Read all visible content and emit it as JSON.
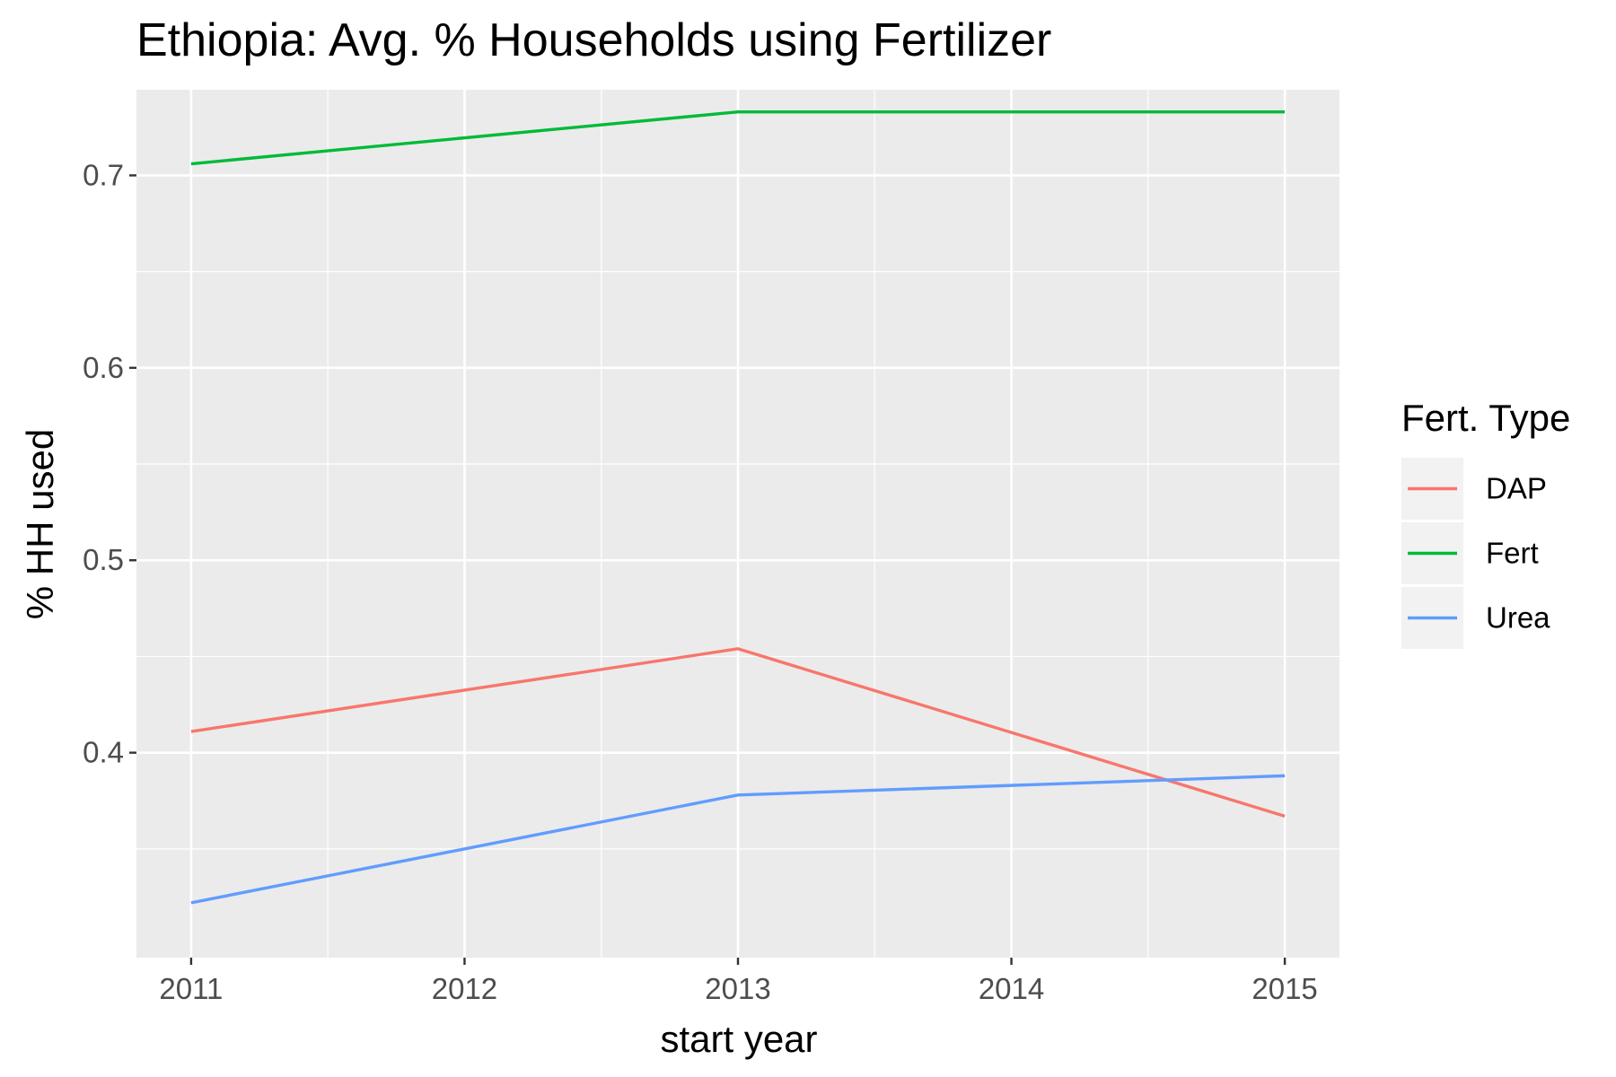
{
  "chart_data": {
    "type": "line",
    "title": "Ethiopia: Avg. % Households using Fertilizer",
    "xlabel": "start year",
    "ylabel": "% HH used",
    "x": [
      2011,
      2013,
      2015
    ],
    "x_ticks": [
      "2011",
      "2012",
      "2013",
      "2014",
      "2015"
    ],
    "y_ticks": [
      "0.4",
      "0.5",
      "0.6",
      "0.7"
    ],
    "xlim": [
      2010.8,
      2015.2
    ],
    "ylim": [
      0.3,
      0.75
    ],
    "grid": true,
    "legend": {
      "title": "Fert. Type",
      "position": "right"
    },
    "series": [
      {
        "name": "DAP",
        "color": "#F8766D",
        "values": [
          0.411,
          0.454,
          0.367
        ]
      },
      {
        "name": "Fert",
        "color": "#00BA38",
        "values": [
          0.706,
          0.733,
          0.733
        ]
      },
      {
        "name": "Urea",
        "color": "#619CFF",
        "values": [
          0.322,
          0.378,
          0.388
        ]
      }
    ],
    "colors": {
      "panel_background": "#EBEBEB",
      "grid_line": "#FFFFFF",
      "legend_key_background": "#F2F2F2"
    }
  }
}
